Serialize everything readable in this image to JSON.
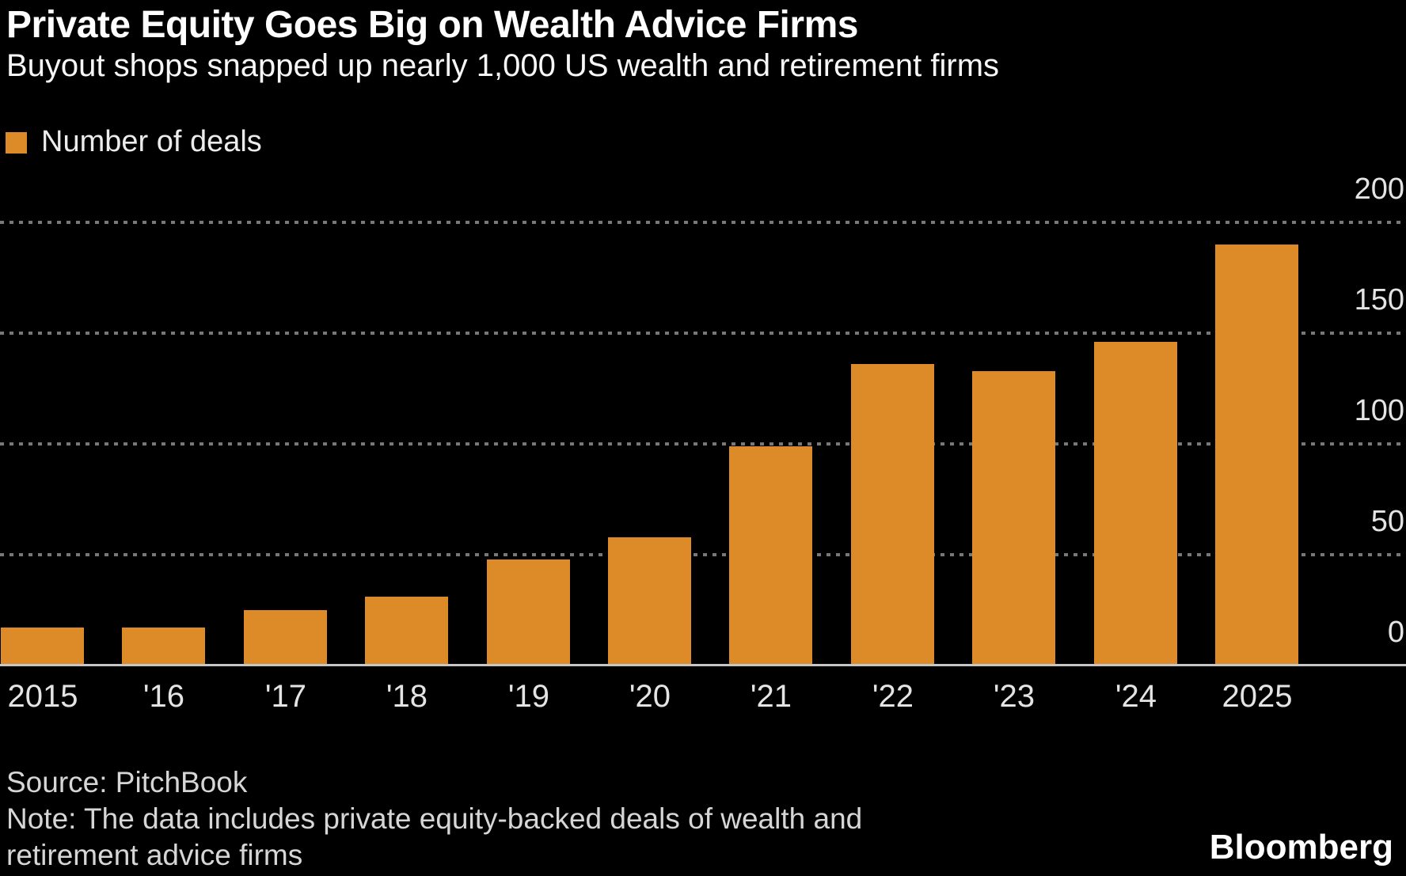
{
  "header": {
    "title": "Private Equity Goes Big on Wealth Advice Firms",
    "subtitle": "Buyout shops snapped up nearly 1,000 US wealth and retirement firms"
  },
  "legend": {
    "label": "Number of deals",
    "swatch_color": "#dc8b28"
  },
  "colors": {
    "background": "#000000",
    "bar": "#dc8b28",
    "gridline": "#787878",
    "axis_line": "#c6c6c6",
    "title_text": "#ffffff",
    "tick_text": "#e4e4e4",
    "footer_text": "#d6d6d6"
  },
  "chart_data": {
    "type": "bar",
    "title": "Private Equity Goes Big on Wealth Advice Firms",
    "subtitle": "Buyout shops snapped up nearly 1,000 US wealth and retirement firms",
    "series_name": "Number of deals",
    "categories": [
      "2015",
      "'16",
      "'17",
      "'18",
      "'19",
      "'20",
      "'21",
      "'22",
      "'23",
      "'24",
      "2025"
    ],
    "values": [
      17,
      17,
      25,
      31,
      48,
      58,
      99,
      136,
      133,
      146,
      190
    ],
    "xlabel": "",
    "ylabel": "",
    "ylim": [
      0,
      200
    ],
    "yticks": [
      0,
      50,
      100,
      150,
      200
    ],
    "grid": "horizontal-dashed",
    "legend_position": "top-left",
    "y_axis_side": "right"
  },
  "footer": {
    "source": "Source: PitchBook",
    "note_line1": "Note: The data includes private equity-backed deals of wealth and",
    "note_line2": "retirement advice firms",
    "brand": "Bloomberg"
  }
}
